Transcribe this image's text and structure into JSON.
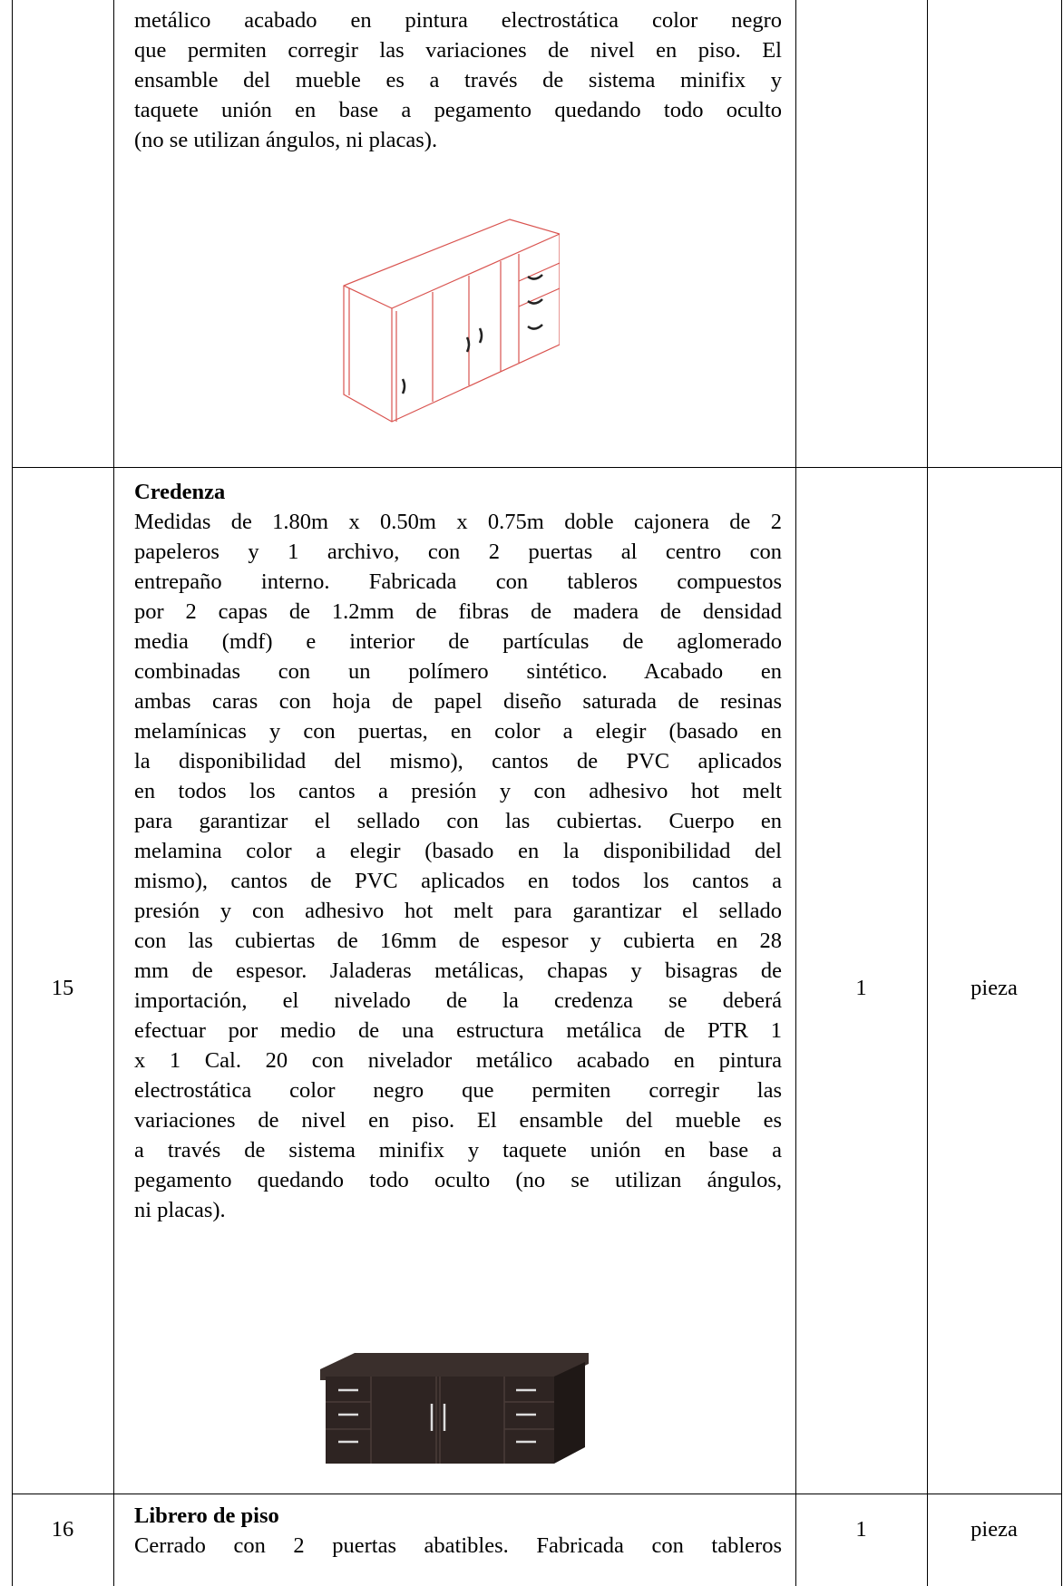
{
  "table": {
    "rows": [
      {
        "description_lines": [
          "metálico acabado en pintura electrostática color negro",
          "que permiten corregir las variaciones de nivel en piso. El",
          "ensamble del mueble es a través de sistema minifix y",
          "taquete unión en base a pegamento quedando todo oculto",
          "(no se utilizan ángulos, ni placas)."
        ]
      },
      {
        "number": "15",
        "title": "Credenza",
        "quantity": "1",
        "unit": "pieza",
        "description_lines": [
          "Medidas de 1.80m x 0.50m x 0.75m doble cajonera de 2",
          "papeleros y 1 archivo, con 2 puertas al centro con",
          "entrepaño interno. Fabricada con tableros compuestos",
          "por 2 capas de 1.2mm de fibras de madera de densidad",
          "media (mdf) e interior de partículas de aglomerado",
          "combinadas con un polímero sintético. Acabado en",
          "ambas caras con hoja de papel diseño saturada de resinas",
          "melamínicas y con puertas, en color a elegir (basado en",
          "la disponibilidad del mismo), cantos de PVC aplicados",
          "en todos los cantos a presión y con adhesivo hot melt",
          "para garantizar el sellado con las cubiertas. Cuerpo en",
          "melamina color a elegir (basado en la disponibilidad del",
          "mismo), cantos de PVC aplicados en todos los cantos a",
          "presión y con adhesivo hot melt para garantizar el sellado",
          "con las cubiertas de 16mm de espesor y cubierta en 28",
          "mm de espesor. Jaladeras metálicas, chapas y bisagras de",
          "importación, el nivelado de la credenza se deberá",
          "efectuar por medio de una estructura metálica de PTR 1",
          "x 1 Cal. 20 con nivelador metálico acabado en pintura",
          "electrostática color negro que permiten corregir las",
          "variaciones de nivel en piso. El ensamble del mueble es",
          "a través de sistema minifix y taquete unión en base a",
          "pegamento quedando todo oculto (no se utilizan ángulos,",
          "ni placas)."
        ]
      },
      {
        "number": "16",
        "title": "Librero de piso",
        "quantity": "1",
        "unit": "pieza",
        "description_lines": [
          "Cerrado con 2 puertas abatibles. Fabricada con tableros"
        ]
      }
    ]
  }
}
